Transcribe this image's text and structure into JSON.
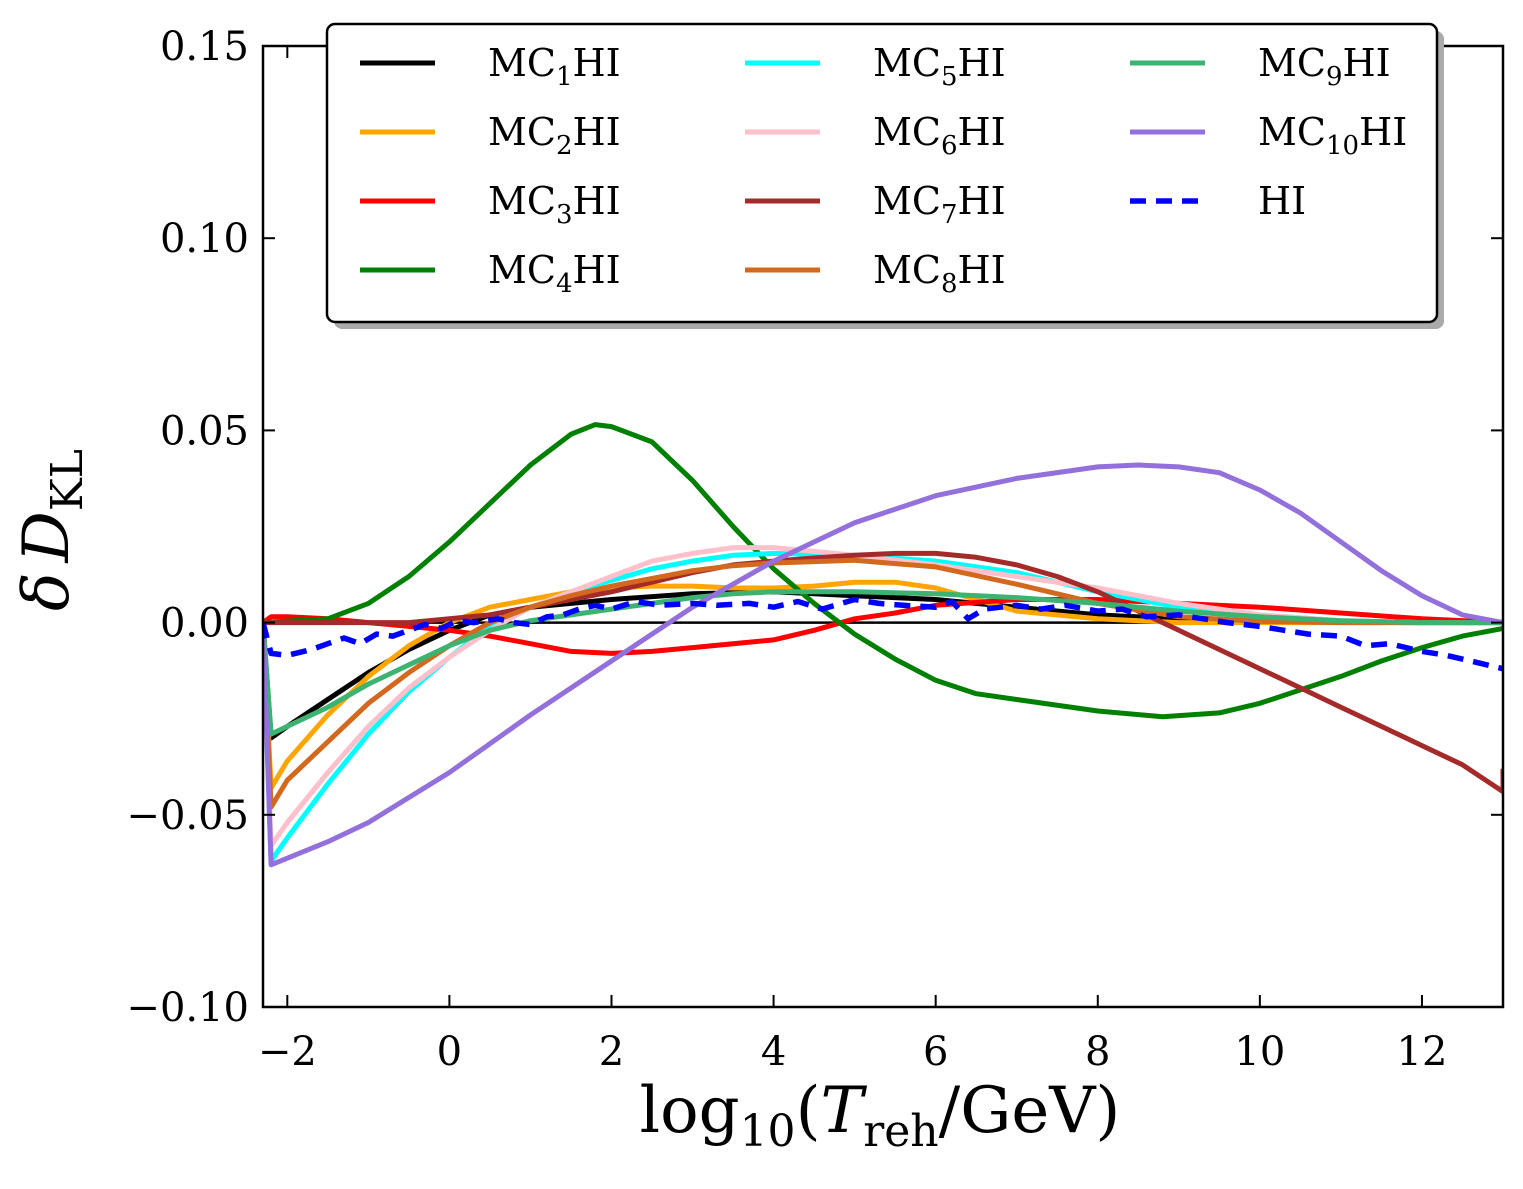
{
  "chart_data": {
    "type": "line",
    "title": "",
    "xlabel": {
      "prefix": "log",
      "sub": "10",
      "open": "(",
      "var": "T",
      "var_sub": "reh",
      "rest": "/GeV)"
    },
    "ylabel": {
      "prefix": "δ",
      "var": "D",
      "sub": "KL"
    },
    "xlim": [
      -2.3,
      13
    ],
    "ylim": [
      -0.1,
      0.15
    ],
    "xticks": [
      -2,
      0,
      2,
      4,
      6,
      8,
      10,
      12
    ],
    "xtick_labels": [
      "−2",
      "0",
      "2",
      "4",
      "6",
      "8",
      "10",
      "12"
    ],
    "yticks": [
      -0.1,
      -0.05,
      0.0,
      0.05,
      0.1,
      0.15
    ],
    "ytick_labels": [
      "−0.10",
      "−0.05",
      "0.00",
      "0.05",
      "0.10",
      "0.15"
    ],
    "grid": false,
    "legend_position": "top",
    "zero_line": true,
    "series": [
      {
        "name": "MC1HI",
        "label_main": "MC",
        "label_sub": "1",
        "label_end": "HI",
        "color": "#000000",
        "dashed": false,
        "x": [
          -2.3,
          -2.2,
          -2,
          -1.5,
          -1,
          -0.5,
          0,
          0.5,
          1,
          1.5,
          2,
          3,
          4,
          5,
          6,
          7,
          8,
          9,
          10,
          11,
          12,
          13
        ],
        "y": [
          0,
          -0.03,
          -0.027,
          -0.02,
          -0.013,
          -0.007,
          -0.002,
          0.002,
          0.004,
          0.005,
          0.006,
          0.0075,
          0.008,
          0.007,
          0.006,
          0.004,
          0.002,
          0.001,
          0.0003,
          0.0001,
          0,
          0
        ]
      },
      {
        "name": "MC2HI",
        "label_main": "MC",
        "label_sub": "2",
        "label_end": "HI",
        "color": "#FFA500",
        "dashed": false,
        "x": [
          -2.3,
          -2.2,
          -2,
          -1.5,
          -1,
          -0.5,
          0,
          0.5,
          1,
          1.5,
          2,
          2.5,
          3,
          3.5,
          4,
          4.5,
          5,
          5.5,
          6,
          6.5,
          7,
          8,
          9,
          10,
          11,
          12,
          13
        ],
        "y": [
          0,
          -0.043,
          -0.036,
          -0.024,
          -0.014,
          -0.006,
          0,
          0.004,
          0.006,
          0.008,
          0.009,
          0.0095,
          0.0095,
          0.009,
          0.009,
          0.0095,
          0.0105,
          0.0105,
          0.009,
          0.006,
          0.003,
          0.001,
          0,
          0,
          0,
          0,
          0
        ]
      },
      {
        "name": "MC3HI",
        "label_main": "MC",
        "label_sub": "3",
        "label_end": "HI",
        "color": "#FF0000",
        "dashed": false,
        "x": [
          -2.3,
          -2.2,
          -2,
          -1.5,
          -1,
          -0.5,
          0,
          0.5,
          1,
          1.5,
          2,
          2.5,
          3,
          3.5,
          4,
          4.5,
          5,
          5.5,
          6,
          7,
          8,
          9,
          10,
          11,
          12,
          13
        ],
        "y": [
          0,
          0.0015,
          0.0015,
          0.001,
          0,
          -0.001,
          -0.002,
          -0.0035,
          -0.0055,
          -0.0075,
          -0.008,
          -0.0075,
          -0.0065,
          -0.0055,
          -0.0045,
          -0.002,
          0.001,
          0.0025,
          0.0045,
          0.006,
          0.006,
          0.005,
          0.004,
          0.0025,
          0.001,
          0
        ]
      },
      {
        "name": "MC4HI",
        "label_main": "MC",
        "label_sub": "4",
        "label_end": "HI",
        "color": "#008000",
        "dashed": false,
        "x": [
          -2.3,
          -1.5,
          -1,
          -0.5,
          0,
          0.5,
          1,
          1.5,
          1.8,
          2,
          2.5,
          3,
          3.5,
          4,
          4.5,
          5,
          5.5,
          6,
          6.5,
          7,
          8,
          8.8,
          9.5,
          10,
          10.5,
          11,
          11.5,
          12,
          12.5,
          13
        ],
        "y": [
          0,
          0.001,
          0.005,
          0.012,
          0.021,
          0.031,
          0.041,
          0.049,
          0.0515,
          0.051,
          0.047,
          0.037,
          0.025,
          0.014,
          0.005,
          -0.003,
          -0.0095,
          -0.015,
          -0.0185,
          -0.02,
          -0.023,
          -0.0245,
          -0.0235,
          -0.021,
          -0.0175,
          -0.014,
          -0.01,
          -0.0065,
          -0.0035,
          -0.0015
        ]
      },
      {
        "name": "MC5HI",
        "label_main": "MC",
        "label_sub": "5",
        "label_end": "HI",
        "color": "#00FFFF",
        "dashed": false,
        "x": [
          -2.3,
          -2.2,
          -2,
          -1.5,
          -1,
          -0.5,
          0,
          0.5,
          1,
          1.5,
          2,
          2.5,
          3,
          3.5,
          4,
          5,
          6,
          7,
          8,
          9,
          10,
          11,
          12,
          13
        ],
        "y": [
          0,
          -0.062,
          -0.056,
          -0.042,
          -0.029,
          -0.018,
          -0.009,
          -0.001,
          0.004,
          0.008,
          0.011,
          0.014,
          0.016,
          0.0175,
          0.018,
          0.0175,
          0.016,
          0.013,
          0.008,
          0.004,
          0.002,
          0.0005,
          0,
          0
        ]
      },
      {
        "name": "MC6HI",
        "label_main": "MC",
        "label_sub": "6",
        "label_end": "HI",
        "color": "#FFC0CB",
        "dashed": false,
        "x": [
          -2.3,
          -2.2,
          -2,
          -1.5,
          -1,
          -0.5,
          0,
          0.5,
          1,
          1.5,
          2,
          2.5,
          3,
          3.5,
          4,
          5,
          6,
          7,
          8,
          9,
          10,
          11,
          12,
          13
        ],
        "y": [
          0,
          -0.058,
          -0.052,
          -0.039,
          -0.027,
          -0.017,
          -0.009,
          -0.002,
          0.004,
          0.008,
          0.012,
          0.016,
          0.018,
          0.0195,
          0.0195,
          0.0175,
          0.015,
          0.012,
          0.009,
          0.005,
          0.002,
          0.0005,
          0,
          0
        ]
      },
      {
        "name": "MC7HI",
        "label_main": "MC",
        "label_sub": "7",
        "label_end": "HI",
        "color": "#A52A2A",
        "dashed": false,
        "x": [
          -2.3,
          -1.5,
          -1,
          -0.5,
          0,
          0.5,
          1,
          1.5,
          2,
          2.5,
          3,
          3.5,
          4,
          4.5,
          5,
          5.5,
          6,
          6.5,
          7,
          7.5,
          8,
          8.5,
          9,
          9.5,
          10,
          10.5,
          11,
          11.5,
          12,
          12.5,
          13,
          13
        ],
        "y": [
          0,
          0,
          0,
          0,
          0.001,
          0.002,
          0.004,
          0.006,
          0.008,
          0.0105,
          0.013,
          0.015,
          0.016,
          0.0168,
          0.0175,
          0.018,
          0.018,
          0.017,
          0.015,
          0.012,
          0.008,
          0.003,
          -0.002,
          -0.007,
          -0.012,
          -0.017,
          -0.022,
          -0.027,
          -0.032,
          -0.037,
          -0.044,
          -0.038
        ]
      },
      {
        "name": "MC8HI",
        "label_main": "MC",
        "label_sub": "8",
        "label_end": "HI",
        "color": "#D2691E",
        "dashed": false,
        "x": [
          -2.3,
          -2.2,
          -2,
          -1.5,
          -1,
          -0.5,
          0,
          0.5,
          1,
          1.5,
          2,
          2.5,
          3,
          3.5,
          4,
          5,
          6,
          7,
          8,
          9,
          10,
          11,
          12,
          13
        ],
        "y": [
          0,
          -0.048,
          -0.041,
          -0.031,
          -0.021,
          -0.013,
          -0.006,
          0,
          0.004,
          0.007,
          0.0095,
          0.0115,
          0.0135,
          0.0148,
          0.0155,
          0.0162,
          0.0145,
          0.01,
          0.005,
          0.0015,
          0.0003,
          0,
          0,
          0
        ]
      },
      {
        "name": "MC9HI",
        "label_main": "MC",
        "label_sub": "9",
        "label_end": "HI",
        "color": "#3CB371",
        "dashed": false,
        "x": [
          -2.3,
          -2.2,
          -2,
          -1.5,
          -1,
          -0.5,
          0,
          0.5,
          1,
          1.5,
          2,
          2.5,
          3,
          3.5,
          4,
          5,
          6,
          7,
          8,
          9,
          10,
          11,
          12,
          13
        ],
        "y": [
          0,
          -0.029,
          -0.027,
          -0.022,
          -0.016,
          -0.011,
          -0.006,
          -0.002,
          0.0005,
          0.002,
          0.0035,
          0.005,
          0.0065,
          0.0075,
          0.008,
          0.008,
          0.0075,
          0.0065,
          0.005,
          0.003,
          0.0015,
          0.0005,
          0,
          0
        ]
      },
      {
        "name": "MC10HI",
        "label_main": "MC",
        "label_sub": "10",
        "label_end": "HI",
        "color": "#9370DB",
        "dashed": false,
        "x": [
          -2.3,
          -2.2,
          -1.5,
          -1,
          0,
          1,
          2,
          3,
          4,
          5,
          6,
          7,
          8,
          8.5,
          9,
          9.5,
          10,
          10.5,
          11,
          11.5,
          12,
          12.5,
          13
        ],
        "y": [
          0,
          -0.063,
          -0.057,
          -0.052,
          -0.039,
          -0.024,
          -0.01,
          0.004,
          0.016,
          0.026,
          0.033,
          0.0375,
          0.0405,
          0.041,
          0.0405,
          0.039,
          0.0345,
          0.0285,
          0.021,
          0.0135,
          0.007,
          0.002,
          0
        ]
      },
      {
        "name": "HI",
        "label_main": "HI",
        "label_sub": "",
        "label_end": "",
        "color": "#0000FF",
        "dashed": true,
        "x": [
          -2.3,
          -2.2,
          -2,
          -1.7,
          -1.5,
          -1.3,
          -1.1,
          -0.9,
          -0.7,
          -0.5,
          -0.3,
          -0.1,
          0.1,
          0.3,
          0.6,
          0.8,
          1,
          1.2,
          1.4,
          1.6,
          1.8,
          2,
          2.3,
          2.6,
          3,
          3.3,
          3.7,
          4,
          4.3,
          4.6,
          5,
          5.3,
          5.6,
          6,
          6.2,
          6.4,
          6.6,
          6.8,
          7,
          7.3,
          7.6,
          8,
          8.3,
          8.6,
          9,
          9.3,
          9.6,
          10,
          10.3,
          10.6,
          11,
          11.3,
          11.6,
          12,
          12.3,
          12.6,
          13
        ],
        "y": [
          0,
          -0.008,
          -0.0085,
          -0.007,
          -0.0055,
          -0.004,
          -0.0055,
          -0.003,
          -0.0035,
          -0.002,
          -0.0005,
          -0.0015,
          0.0005,
          0,
          0.001,
          0,
          -0.0005,
          0.0015,
          0.002,
          0.0035,
          0.0045,
          0.0035,
          0.0055,
          0.0045,
          0.005,
          0.0045,
          0.005,
          0.004,
          0.0055,
          0.0035,
          0.006,
          0.005,
          0.0045,
          0.004,
          0.0055,
          0.001,
          0.0035,
          0.004,
          0.0045,
          0.0035,
          0.0045,
          0.003,
          0.0035,
          0.0015,
          0.002,
          0.001,
          0,
          -0.001,
          -0.002,
          -0.003,
          -0.0035,
          -0.006,
          -0.0055,
          -0.0075,
          -0.0085,
          -0.01,
          -0.012
        ]
      }
    ]
  }
}
